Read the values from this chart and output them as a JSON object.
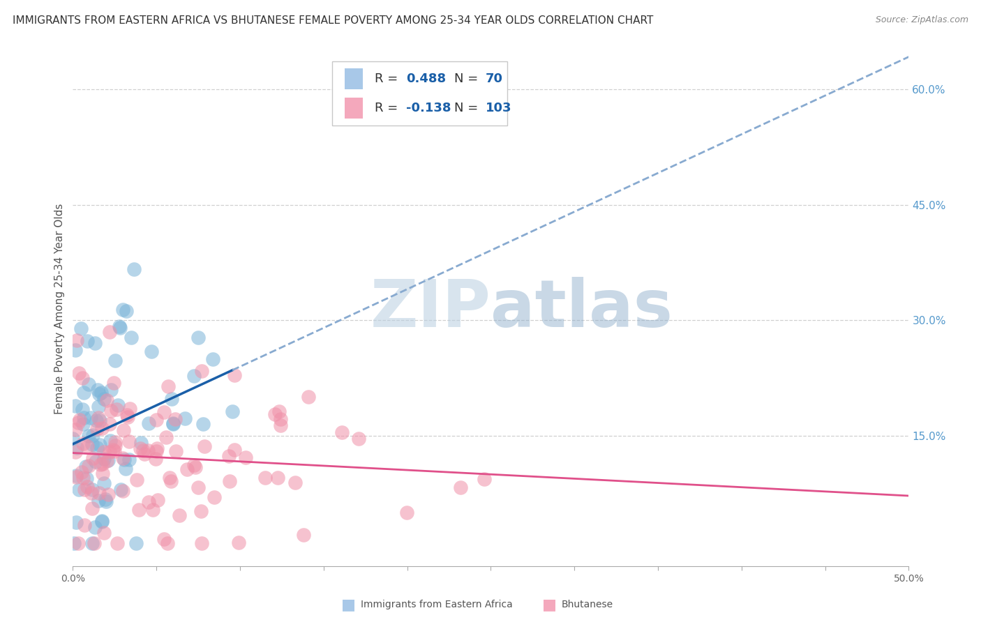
{
  "title": "IMMIGRANTS FROM EASTERN AFRICA VS BHUTANESE FEMALE POVERTY AMONG 25-34 YEAR OLDS CORRELATION CHART",
  "source": "Source: ZipAtlas.com",
  "ylabel": "Female Poverty Among 25-34 Year Olds",
  "xlim": [
    0.0,
    0.5
  ],
  "ylim": [
    -0.02,
    0.65
  ],
  "ytick_labels_right": [
    "15.0%",
    "30.0%",
    "45.0%",
    "60.0%"
  ],
  "ytick_positions_right": [
    0.15,
    0.3,
    0.45,
    0.6
  ],
  "watermark": "ZIPAtlas",
  "scatter_blue_color": "#7ab4d8",
  "scatter_pink_color": "#f090a8",
  "line_blue_color": "#1a5fa8",
  "line_blue_dash_color": "#88aad0",
  "line_pink_color": "#e0508a",
  "grid_color": "#d0d0d0",
  "bg_color": "#ffffff",
  "title_fontsize": 11,
  "source_fontsize": 9,
  "ylabel_fontsize": 11,
  "watermark_color": "#c8d8ea",
  "watermark_fontsize": 68,
  "legend_blue_fill": "#a8c8e8",
  "legend_pink_fill": "#f4a8bc",
  "legend_text_dark": "#333333",
  "legend_text_blue": "#1a5fa8",
  "right_tick_color": "#5599cc"
}
